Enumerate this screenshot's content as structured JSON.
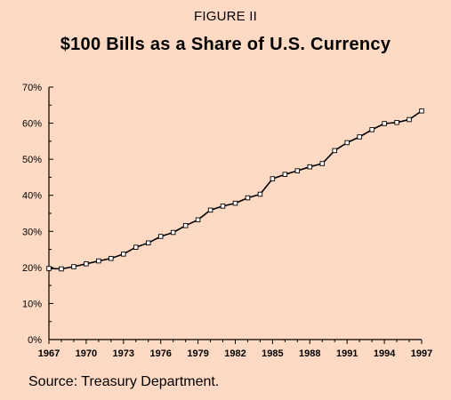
{
  "figure_label": "FIGURE II",
  "source": "Source: Treasury Department.",
  "chart_data": {
    "type": "line",
    "title": "$100 Bills as a Share of U.S. Currency",
    "xlabel": "",
    "ylabel": "",
    "xlim": [
      1967,
      1997
    ],
    "ylim": [
      0,
      70
    ],
    "x_ticks": [
      1967,
      1970,
      1973,
      1976,
      1979,
      1982,
      1985,
      1988,
      1991,
      1994,
      1997
    ],
    "y_ticks": [
      0,
      10,
      20,
      30,
      40,
      50,
      60,
      70
    ],
    "y_tick_labels": [
      "0%",
      "10%",
      "20%",
      "30%",
      "40%",
      "50%",
      "60%",
      "70%"
    ],
    "grid": false,
    "legend": "none",
    "marker": "open-square",
    "series": [
      {
        "x": [
          1967,
          1968,
          1969,
          1970,
          1971,
          1972,
          1973,
          1974,
          1975,
          1976,
          1977,
          1978,
          1979,
          1980,
          1981,
          1982,
          1983,
          1984,
          1985,
          1986,
          1987,
          1988,
          1989,
          1990,
          1991,
          1992,
          1993,
          1994,
          1995,
          1996,
          1997
        ],
        "values": [
          19.7,
          19.6,
          20.2,
          21.0,
          21.8,
          22.5,
          23.7,
          25.6,
          26.8,
          28.6,
          29.7,
          31.6,
          33.2,
          35.9,
          37.0,
          37.8,
          39.3,
          40.3,
          44.6,
          45.8,
          46.8,
          47.9,
          48.8,
          52.4,
          54.6,
          56.2,
          58.2,
          59.9,
          60.2,
          61.0,
          63.4
        ]
      }
    ],
    "colors": {
      "background": "#fed9c3",
      "line": "#000000",
      "marker_fill": "#ffffff"
    }
  }
}
